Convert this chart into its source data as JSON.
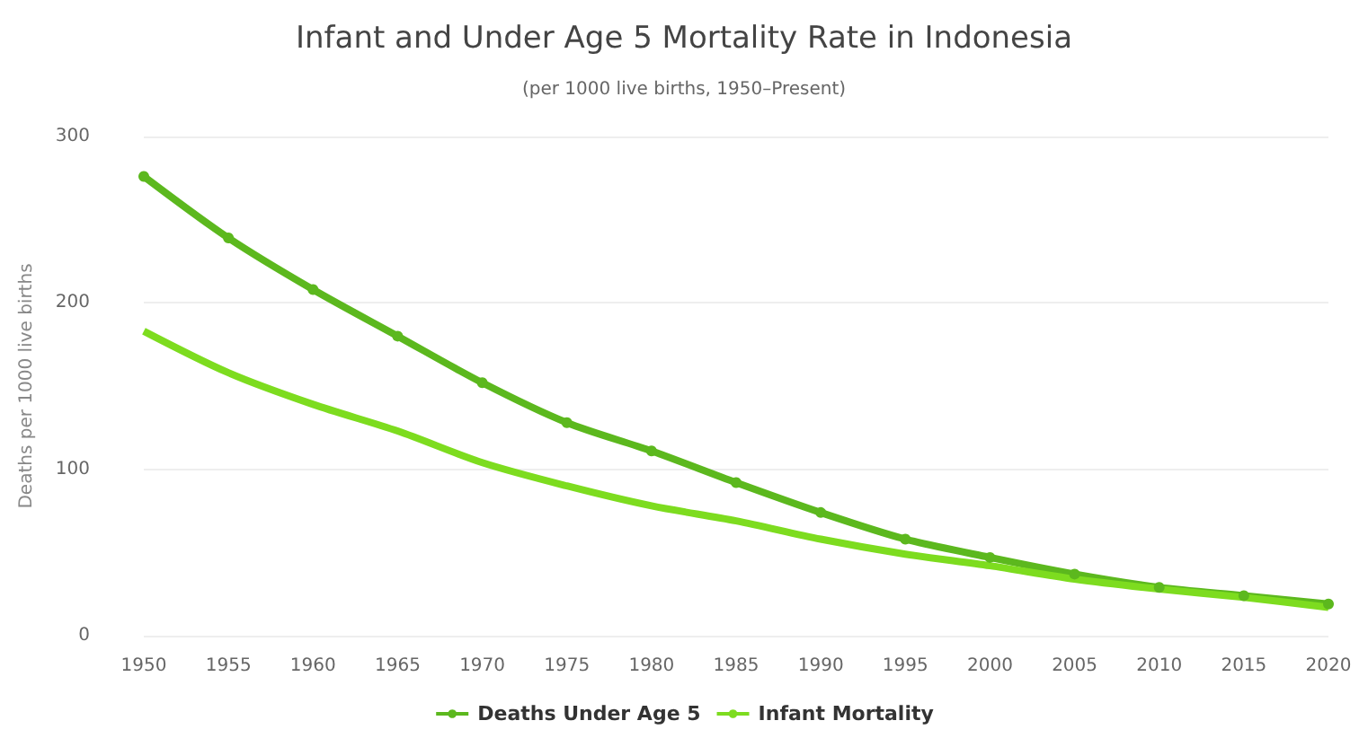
{
  "chart_data": {
    "type": "line",
    "title": "Infant and Under Age 5 Mortality Rate in Indonesia",
    "subtitle": "(per 1000 live births, 1950–Present)",
    "ylabel": "Deaths per 1000 live births",
    "x": [
      1950,
      1955,
      1960,
      1965,
      1970,
      1975,
      1980,
      1985,
      1990,
      1995,
      2000,
      2005,
      2010,
      2015,
      2020
    ],
    "xlim": [
      1950,
      2020
    ],
    "xticks": [
      1950,
      1955,
      1960,
      1965,
      1970,
      1975,
      1980,
      1985,
      1990,
      1995,
      2000,
      2005,
      2010,
      2015,
      2020
    ],
    "ylim": [
      0,
      300
    ],
    "yticks": [
      0,
      100,
      200,
      300
    ],
    "grid": "y",
    "legend": "bottom",
    "series": [
      {
        "name": "Deaths Under Age 5",
        "color": "#5cb81e",
        "marker": "circle",
        "values": [
          276,
          239,
          208,
          180,
          152,
          128,
          111,
          92,
          74,
          58,
          47,
          37,
          29,
          24,
          19
        ]
      },
      {
        "name": "Infant Mortality",
        "color": "#7ddc1f",
        "marker": "none",
        "values": [
          183,
          158,
          139,
          123,
          104,
          90,
          78,
          69,
          58,
          49,
          42,
          34,
          28,
          23,
          17
        ]
      }
    ]
  }
}
